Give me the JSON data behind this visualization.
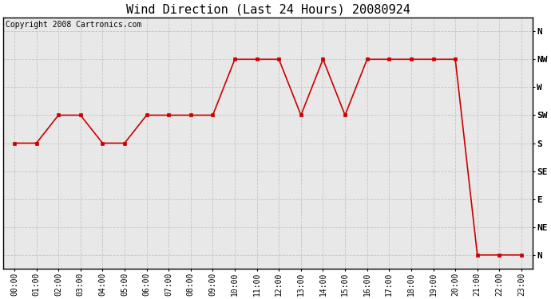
{
  "title": "Wind Direction (Last 24 Hours) 20080924",
  "copyright": "Copyright 2008 Cartronics.com",
  "x_labels": [
    "00:00",
    "01:00",
    "02:00",
    "03:00",
    "04:00",
    "05:00",
    "06:00",
    "07:00",
    "08:00",
    "09:00",
    "10:00",
    "11:00",
    "12:00",
    "13:00",
    "14:00",
    "15:00",
    "16:00",
    "17:00",
    "18:00",
    "19:00",
    "20:00",
    "21:00",
    "22:00",
    "23:00"
  ],
  "y_tick_positions": [
    8,
    7,
    6,
    5,
    4,
    3,
    2,
    1,
    0
  ],
  "y_tick_labels": [
    "N",
    "NW",
    "W",
    "SW",
    "S",
    "SE",
    "E",
    "NE",
    "N"
  ],
  "wind_data": [
    4,
    4,
    5,
    5,
    4,
    4,
    5,
    5,
    5,
    5,
    7,
    7,
    7,
    5,
    7,
    5,
    7,
    7,
    7,
    7,
    7,
    0,
    0,
    0
  ],
  "line_color": "#cc0000",
  "marker_color": "#cc0000",
  "bg_color": "#ffffff",
  "plot_bg_color": "#e8e8e8",
  "grid_color": "#bbbbbb",
  "title_fontsize": 11,
  "copyright_fontsize": 7,
  "tick_fontsize": 7,
  "ytick_fontsize": 8
}
